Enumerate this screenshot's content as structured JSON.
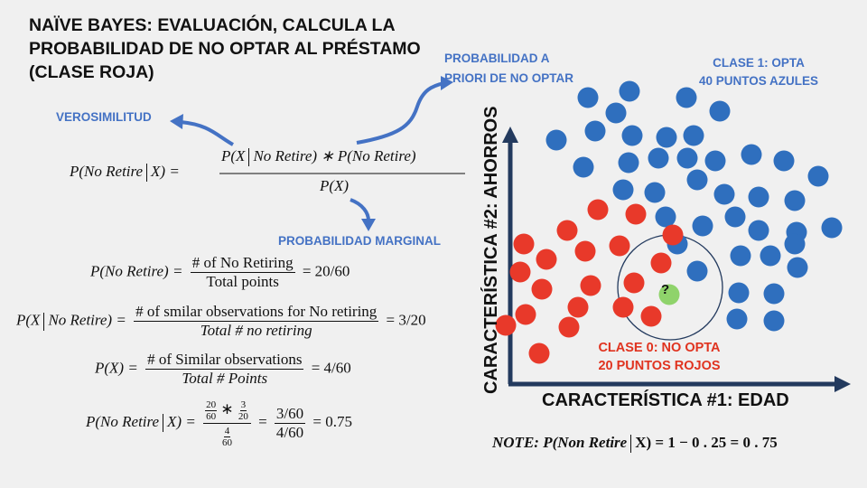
{
  "title": "NAÏVE BAYES: EVALUACIÓN, CALCULA LA PROBABILIDAD DE NO OPTAR AL PRÉSTAMO (CLASE ROJA)",
  "labels": {
    "verosimilitud": "VEROSIMILITUD",
    "prior_line1": "PROBABILIDAD A",
    "prior_line2": "PRIORI DE NO OPTAR",
    "marginal": "PROBABILIDAD MARGINAL"
  },
  "formula_main": {
    "lhs": "P(No Retire",
    "lhs_x": "X) =",
    "num_a": "P(X",
    "num_b": "No Retire) ∗ P(No Retire)",
    "den": "P(X)"
  },
  "eq1": {
    "lhs": "P(No Retire) =",
    "num": "# of No Retiring",
    "den": "Total points",
    "rhs": "= 20/60"
  },
  "eq2": {
    "lhs_a": "P(X",
    "lhs_b": "No Retire) =",
    "num": "# of smilar observations for No retiring",
    "den": "Total # no retiring",
    "rhs": "= 3/20"
  },
  "eq3": {
    "lhs": "P(X) =",
    "num": "# of Similar observations",
    "den": "Total # Points",
    "rhs": "= 4/60"
  },
  "eq4": {
    "lhs_a": "P(No Retire",
    "lhs_b": "X) =",
    "f1n": "20",
    "f1d": "60",
    "star": "∗",
    "f2n": "3",
    "f2d": "20",
    "f3n": "4",
    "f3d": "60",
    "mid_num": "3/60",
    "mid_den": "4/60",
    "rhs": "= 0.75"
  },
  "class1": {
    "line1": "CLASE 1: OPTA",
    "line2": "40 PUNTOS AZULES"
  },
  "class0": {
    "line1": "CLASE 0: NO OPTA",
    "line2": "20 PUNTOS ROJOS"
  },
  "axis_x": "CARACTERÍSTICA #1: EDAD",
  "axis_y": "CARACTERÍSTICA #2: AHORROS",
  "query_mark": "?",
  "note": {
    "label": "NOTE",
    "text": ": P(Non Retire",
    "rhs": "X) = 1 − 0 . 25 = 0 . 75"
  },
  "colors": {
    "blue": "#2f6fbe",
    "red": "#e8392a",
    "green": "#8fd36b",
    "accent_blue": "#4472c4",
    "axis": "#233a5e"
  }
}
